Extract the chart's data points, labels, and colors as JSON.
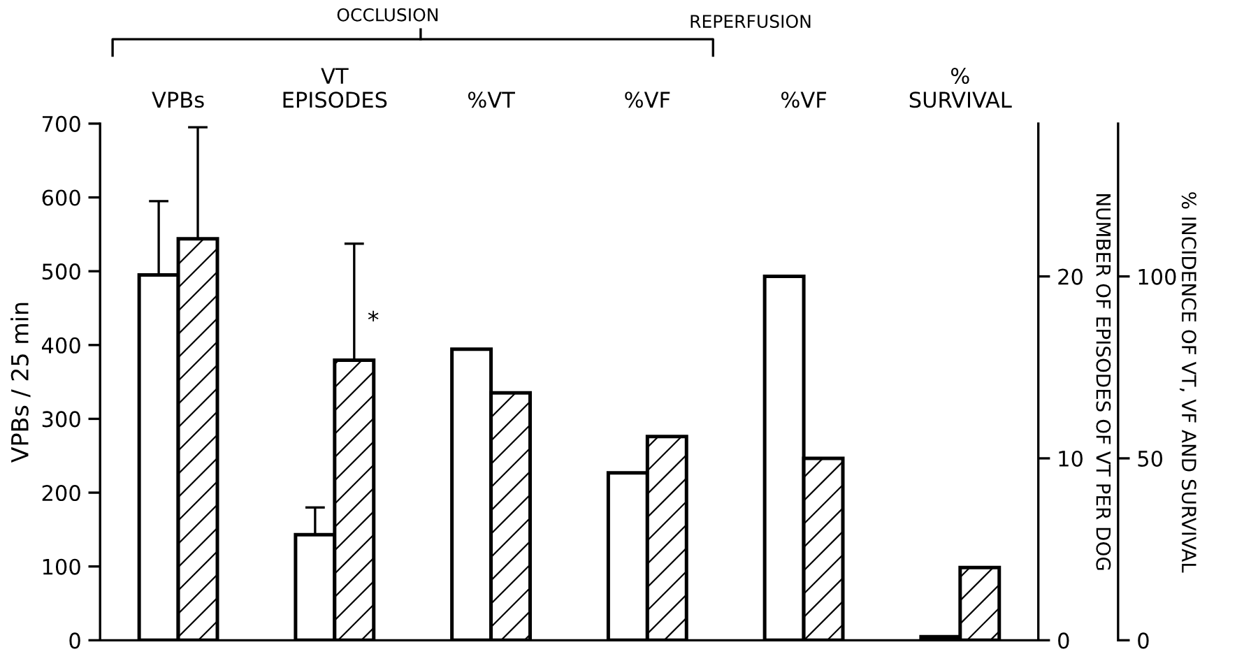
{
  "chart_data": {
    "type": "bar",
    "categories": [
      "VPBs",
      "VT\nEPISODES",
      "%VT",
      "%VF",
      "%VF",
      "%\nSURVIVAL"
    ],
    "series": [
      {
        "color": "#ffffff",
        "axis": "y",
        "values": [
          495,
          null,
          null,
          null,
          null,
          null
        ],
        "errors": [
          [
            495,
            595
          ],
          null,
          null,
          null,
          null,
          null
        ]
      },
      {
        "color": "#000000",
        "axis": "y",
        "values": [
          544,
          null,
          null,
          null,
          null,
          null
        ],
        "errors": [
          [
            544,
            695
          ],
          null,
          null,
          null,
          null,
          null
        ]
      },
      {
        "color": "#ffffff",
        "axis": "y2",
        "values": [
          null,
          5.8,
          null,
          null,
          null,
          null
        ],
        "errors": [
          null,
          [
            5.8,
            7.3
          ],
          null,
          null,
          null,
          null
        ]
      },
      {
        "color": "#000000",
        "axis": "y2",
        "values": [
          null,
          15.4,
          null,
          null,
          null,
          null
        ],
        "errors": [
          null,
          [
            15.4,
            21.8
          ],
          null,
          null,
          null,
          null
        ]
      },
      {
        "color": "#ffffff",
        "axis": "y3",
        "values": [
          null,
          null,
          80,
          46,
          100,
          1
        ]
      },
      {
        "color": "#000000",
        "axis": "y3",
        "values": [
          null,
          null,
          68,
          56,
          50,
          20
        ]
      }
    ],
    "ylabel": "VPBs / 25 min",
    "y2label": "NUMBER OF EPISODES OF VT PER DOG",
    "y3label": "% INCIDENCE OF VT, VF AND SURVIVAL",
    "ylim": [
      0,
      700
    ],
    "yticks": [
      0,
      100,
      200,
      300,
      400,
      500,
      600,
      700
    ],
    "y2lim": [
      0,
      28.4
    ],
    "y2ticks": [
      0,
      10,
      20
    ],
    "y3lim": [
      0,
      142
    ],
    "y3ticks": [
      0,
      50,
      100
    ],
    "annotations": [
      "OCCLUSION",
      "REPERFUSION",
      "*"
    ],
    "grid": false,
    "legend": false
  }
}
